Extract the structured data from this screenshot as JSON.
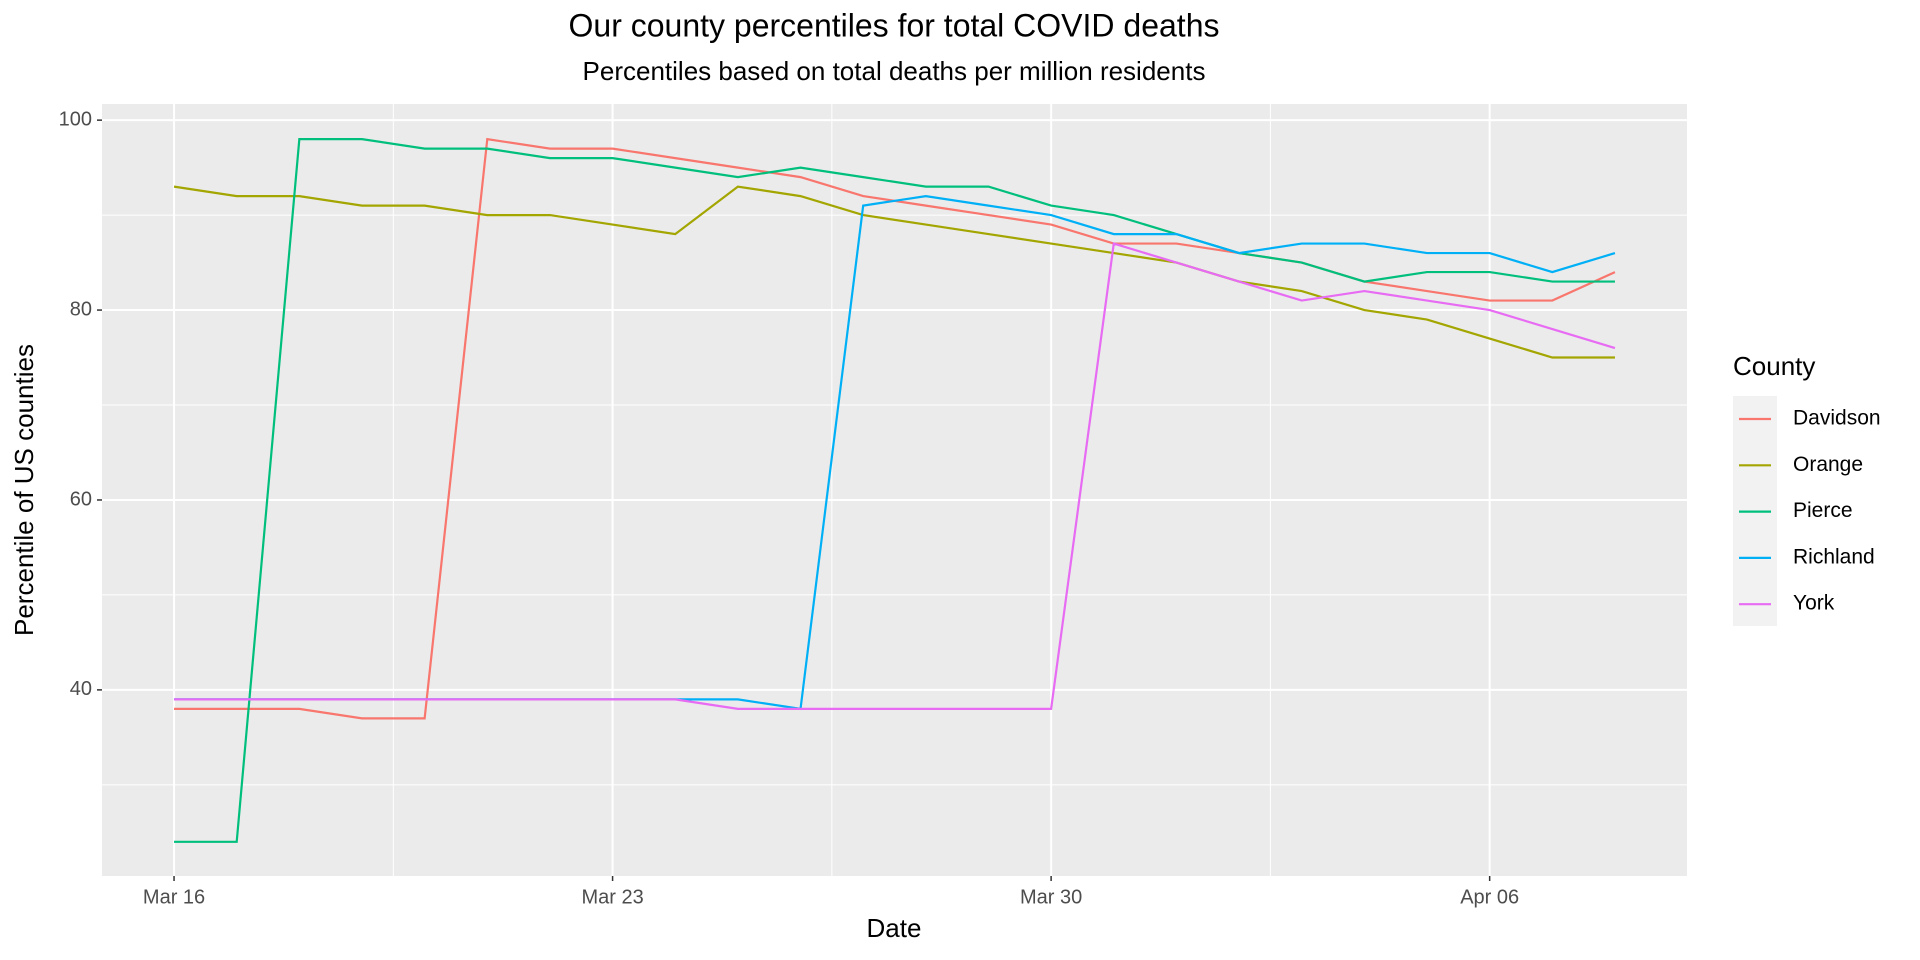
{
  "chart_data": {
    "type": "line",
    "title": "Our county percentiles for total COVID deaths",
    "subtitle": "Percentiles based on total deaths per million residents",
    "x_label": "Date",
    "y_label": "Percentile of US counties",
    "legend_title": "County",
    "legend": "right",
    "grid": true,
    "x": [
      "Mar 16",
      "Mar 17",
      "Mar 18",
      "Mar 19",
      "Mar 20",
      "Mar 21",
      "Mar 22",
      "Mar 23",
      "Mar 24",
      "Mar 25",
      "Mar 26",
      "Mar 27",
      "Mar 28",
      "Mar 29",
      "Mar 30",
      "Mar 31",
      "Apr 01",
      "Apr 02",
      "Apr 03",
      "Apr 04",
      "Apr 05",
      "Apr 06",
      "Apr 07",
      "Apr 08"
    ],
    "xticks": [
      "Mar 16",
      "Mar 23",
      "Mar 30",
      "Apr 06"
    ],
    "ylim": [
      20.4,
      101.7
    ],
    "yticks": [
      40,
      60,
      80,
      100
    ],
    "series": [
      {
        "name": "Davidson",
        "color": "#F8766D",
        "values": [
          38,
          38,
          38,
          37,
          37,
          98,
          97,
          97,
          96,
          95,
          94,
          92,
          91,
          90,
          89,
          87,
          87,
          86,
          85,
          83,
          82,
          81,
          81,
          84
        ]
      },
      {
        "name": "Orange",
        "color": "#A3A500",
        "values": [
          93,
          92,
          92,
          91,
          91,
          90,
          90,
          89,
          88,
          93,
          92,
          90,
          89,
          88,
          87,
          86,
          85,
          83,
          82,
          80,
          79,
          77,
          75,
          75
        ]
      },
      {
        "name": "Pierce",
        "color": "#00BF7D",
        "values": [
          24,
          24,
          98,
          98,
          97,
          97,
          96,
          96,
          95,
          94,
          95,
          94,
          93,
          93,
          91,
          90,
          88,
          86,
          85,
          83,
          84,
          84,
          83,
          83
        ]
      },
      {
        "name": "Richland",
        "color": "#00B0F6",
        "values": [
          39,
          39,
          39,
          39,
          39,
          39,
          39,
          39,
          39,
          39,
          38,
          91,
          92,
          91,
          90,
          88,
          88,
          86,
          87,
          87,
          86,
          86,
          84,
          86
        ]
      },
      {
        "name": "York",
        "color": "#E76BF3",
        "values": [
          39,
          39,
          39,
          39,
          39,
          39,
          39,
          39,
          39,
          38,
          38,
          38,
          38,
          38,
          38,
          87,
          85,
          83,
          81,
          82,
          81,
          80,
          78,
          76
        ]
      }
    ]
  }
}
